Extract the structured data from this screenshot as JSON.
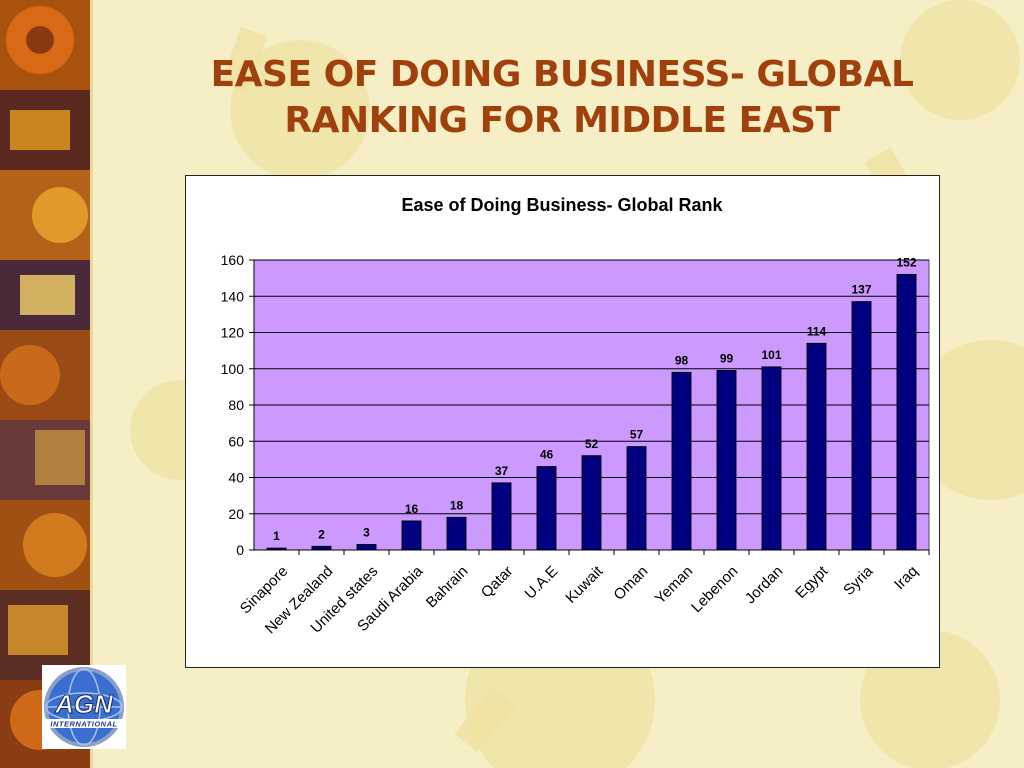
{
  "slide": {
    "title_line1": "EASE OF DOING BUSINESS- GLOBAL",
    "title_line2": "RANKING FOR MIDDLE EAST"
  },
  "logo": {
    "text": "AGN",
    "subtext": "INTERNATIONAL"
  },
  "colors": {
    "title": "#a0400c",
    "plot_area": "#cc99ff",
    "bar": "#000080",
    "background": "#f6eec4"
  },
  "chart_data": {
    "type": "bar",
    "title": "Ease of Doing Business- Global Rank",
    "xlabel": "",
    "ylabel": "",
    "categories": [
      "Sinapore",
      "New Zealand",
      "United states",
      "Saudi Arabia",
      "Bahrain",
      "Qatar",
      "U.A.E",
      "Kuwait",
      "Oman",
      "Yeman",
      "Lebenon",
      "Jordan",
      "Egypt",
      "Syria",
      "Iraq"
    ],
    "values": [
      1,
      2,
      3,
      16,
      18,
      37,
      46,
      52,
      57,
      98,
      99,
      101,
      114,
      137,
      152
    ],
    "ylim": [
      0,
      160
    ],
    "yticks": [
      0,
      20,
      40,
      60,
      80,
      100,
      120,
      140,
      160
    ],
    "grid": true,
    "legend": "none",
    "data_labels": true
  }
}
